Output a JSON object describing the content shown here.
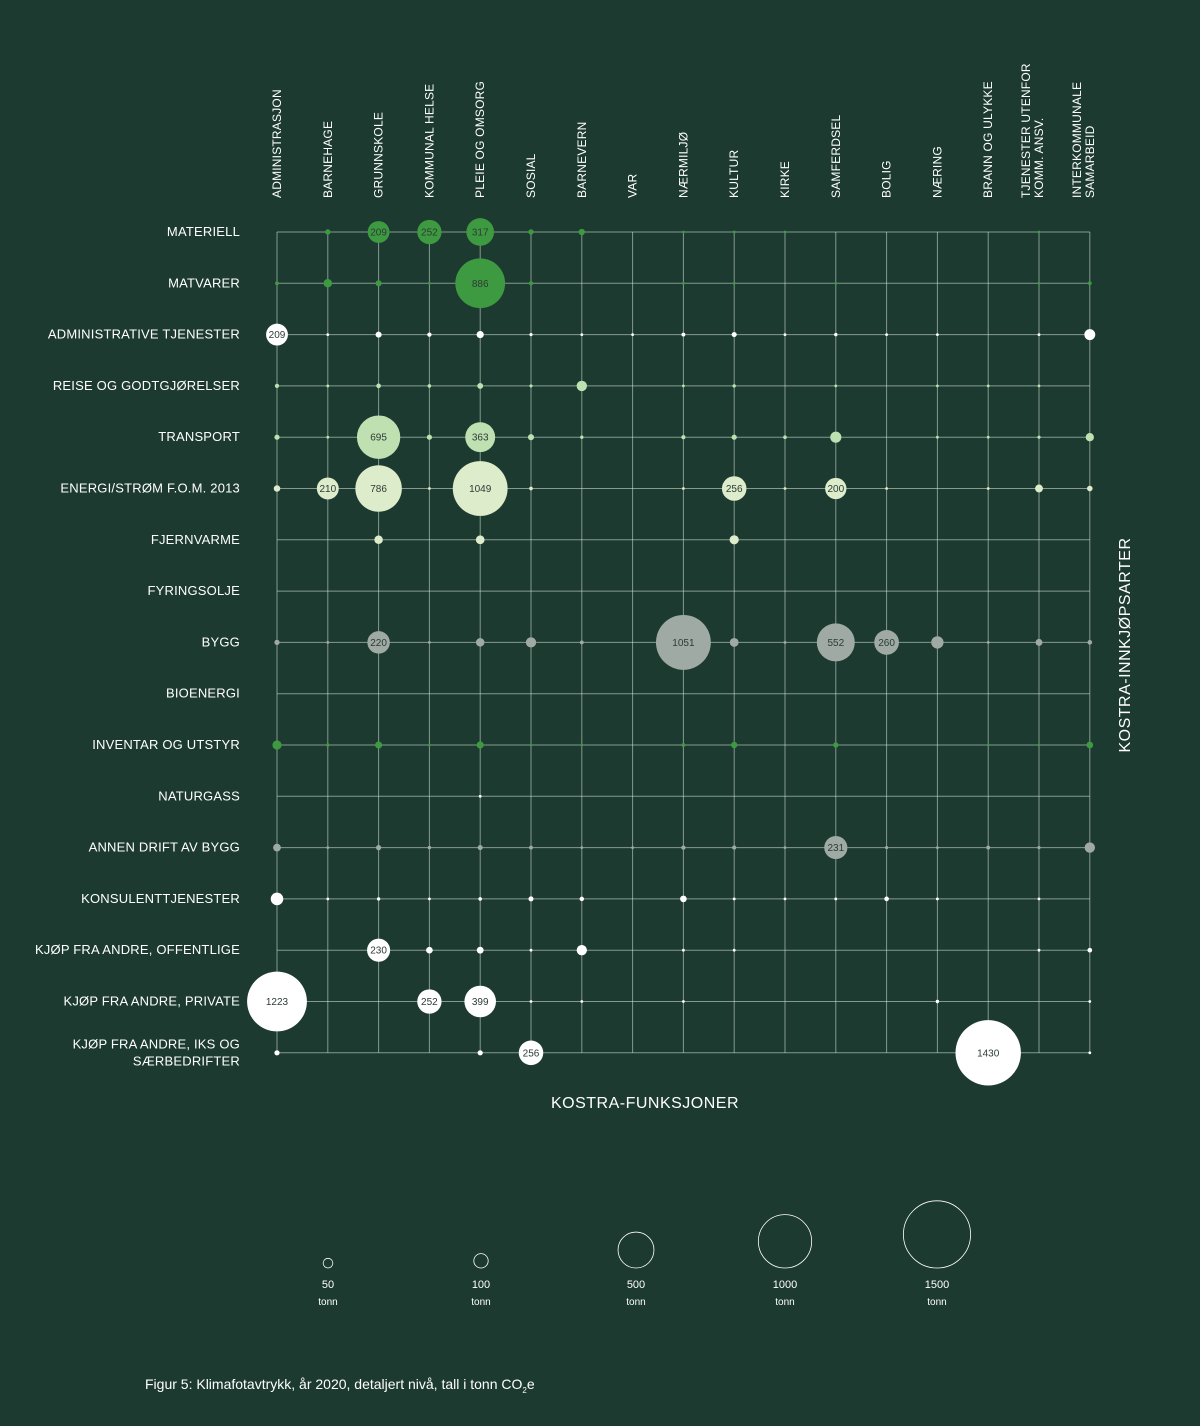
{
  "caption": {
    "text": "Figur 5: Klimafotavtrykk, år 2020, detaljert nivå, tall i tonn CO",
    "sub": "2",
    "suffix": "e"
  },
  "chart_data": {
    "type": "bubble-matrix",
    "xlabel": "KOSTRA-FUNKSJONER",
    "ylabel": "KOSTRA-INNKJØPSARTER",
    "columns": [
      [
        "ADMINISTRASJON"
      ],
      [
        "BARNEHAGE"
      ],
      [
        "GRUNNSKOLE"
      ],
      [
        "KOMMUNAL HELSE"
      ],
      [
        "PLEIE OG OMSORG"
      ],
      [
        "SOSIAL"
      ],
      [
        "BARNEVERN"
      ],
      [
        "VAR"
      ],
      [
        "NÆRMILJØ"
      ],
      [
        "KULTUR"
      ],
      [
        "KIRKE"
      ],
      [
        "SAMFERDSEL"
      ],
      [
        "BOLIG"
      ],
      [
        "NÆRING"
      ],
      [
        "BRANN OG ULYKKE"
      ],
      [
        "TJENESTER UTENFOR",
        "KOMM. ANSV."
      ],
      [
        "INTERKOMMUNALE",
        "SAMARBEID"
      ]
    ],
    "rows": [
      {
        "label": [
          "MATERIELL"
        ],
        "color": "#3e9a40",
        "values": [
          0,
          18,
          209,
          252,
          317,
          18,
          24,
          0,
          4,
          6,
          1,
          0,
          0,
          0,
          0,
          5,
          0
        ]
      },
      {
        "label": [
          "MATVARER"
        ],
        "color": "#3e9a40",
        "values": [
          10,
          40,
          22,
          2,
          886,
          12,
          0,
          0,
          1,
          5,
          0,
          1,
          0,
          0,
          0,
          1,
          10
        ]
      },
      {
        "label": [
          "ADMINISTRATIVE TJENESTER"
        ],
        "color": "#ffffff",
        "values": [
          209,
          4,
          22,
          12,
          30,
          7,
          3,
          0.5,
          10,
          16,
          1,
          8,
          1,
          2,
          0,
          3,
          62
        ]
      },
      {
        "label": [
          "REISE OG GODTGJØRELSER"
        ],
        "color": "#bfe0b0",
        "values": [
          12,
          6,
          14,
          9,
          21,
          7,
          57,
          0,
          2,
          8,
          0,
          2,
          0,
          1,
          1,
          2,
          0
        ]
      },
      {
        "label": [
          "TRANSPORT"
        ],
        "color": "#bfe0b0",
        "values": [
          17,
          3,
          695,
          17,
          363,
          22,
          8,
          0,
          11,
          17,
          9,
          64,
          0,
          1,
          1,
          7,
          38
        ]
      },
      {
        "label": [
          "ENERGI/STRØM F.O.M. 2013"
        ],
        "color": "#ddecca",
        "values": [
          25,
          210,
          786,
          5,
          1049,
          9,
          0,
          0,
          3,
          256,
          3,
          200,
          1,
          0,
          1,
          35,
          19
        ]
      },
      {
        "label": [
          "FJERNVARME"
        ],
        "color": "#ddecca",
        "values": [
          0,
          0,
          40,
          0,
          42,
          0,
          0,
          0,
          0,
          46,
          0,
          0,
          0,
          0,
          0,
          0,
          0
        ]
      },
      {
        "label": [
          "FYRINGSOLJE"
        ],
        "color": "#9eaaa3",
        "values": [
          0,
          0,
          0,
          0,
          0,
          0,
          0,
          0,
          0,
          0,
          0,
          0,
          0,
          0,
          0,
          0,
          0
        ]
      },
      {
        "label": [
          "BYGG"
        ],
        "color": "#9eaaa3",
        "values": [
          17,
          2,
          220,
          2,
          40,
          56,
          10,
          0,
          1051,
          43,
          6,
          552,
          260,
          77,
          4,
          28,
          14
        ]
      },
      {
        "label": [
          "BIOENERGI"
        ],
        "color": "#9eaaa3",
        "values": [
          0,
          0,
          0,
          0,
          0,
          0,
          0,
          0,
          0,
          0,
          0,
          0,
          0,
          0,
          0,
          0,
          0
        ]
      },
      {
        "label": [
          "INVENTAR OG UTSTYR"
        ],
        "color": "#3e9a40",
        "values": [
          46,
          8,
          29,
          4,
          30,
          4,
          1,
          0,
          10,
          24,
          0,
          18,
          0,
          0,
          2,
          1,
          26
        ]
      },
      {
        "label": [
          "NATURGASS"
        ],
        "color": "#ffffff",
        "values": [
          0,
          0,
          0,
          0,
          0.3,
          0,
          0,
          0,
          0,
          0,
          0,
          0,
          0,
          0,
          0,
          0,
          0
        ]
      },
      {
        "label": [
          "ANNEN DRIFT AV BYGG"
        ],
        "color": "#9eaaa3",
        "values": [
          34,
          2,
          17,
          8,
          16,
          10,
          3,
          1,
          12,
          11,
          2,
          231,
          7,
          0.5,
          10,
          7,
          57
        ]
      },
      {
        "label": [
          "KONSULENTTJENESTER"
        ],
        "color": "#ffffff",
        "values": [
          79,
          0.5,
          8,
          2,
          9,
          16,
          13,
          0,
          26,
          6,
          0.5,
          6,
          14,
          6,
          0,
          2,
          0
        ]
      },
      {
        "label": [
          "KJØP FRA ANDRE, OFFENTLIGE"
        ],
        "color": "#ffffff",
        "values": [
          0,
          0,
          230,
          26,
          27,
          1,
          56,
          0,
          2,
          0.5,
          0,
          0,
          0,
          0,
          0,
          1,
          14
        ]
      },
      {
        "label": [
          "KJØP FRA ANDRE, PRIVATE"
        ],
        "color": "#ffffff",
        "values": [
          1223,
          0,
          0,
          252,
          399,
          1,
          5,
          0,
          0.5,
          0,
          0,
          0,
          0,
          8,
          0,
          0,
          3
        ]
      },
      {
        "label": [
          "KJØP FRA ANDRE, IKS OG",
          "SÆRBEDRIFTER"
        ],
        "color": "#ffffff",
        "values": [
          17,
          0,
          0,
          0,
          17,
          256,
          0,
          0,
          0,
          0,
          0,
          0,
          0,
          0,
          1430,
          0,
          5
        ]
      }
    ],
    "bubble_labels_shown": [
      "209",
      "252",
      "317",
      "886",
      "209",
      "695",
      "363",
      "210",
      "786",
      "1049",
      "256",
      "200",
      "220",
      "1051",
      "552",
      "260",
      "231",
      "230",
      "1223",
      "252",
      "399",
      "256",
      "1430"
    ],
    "size_legend": [
      {
        "value": 50,
        "label": "50",
        "unit": "tonn"
      },
      {
        "value": 100,
        "label": "100",
        "unit": "tonn"
      },
      {
        "value": 500,
        "label": "500",
        "unit": "tonn"
      },
      {
        "value": 1000,
        "label": "1000",
        "unit": "tonn"
      },
      {
        "value": 1500,
        "label": "1500",
        "unit": "tonn"
      }
    ]
  }
}
